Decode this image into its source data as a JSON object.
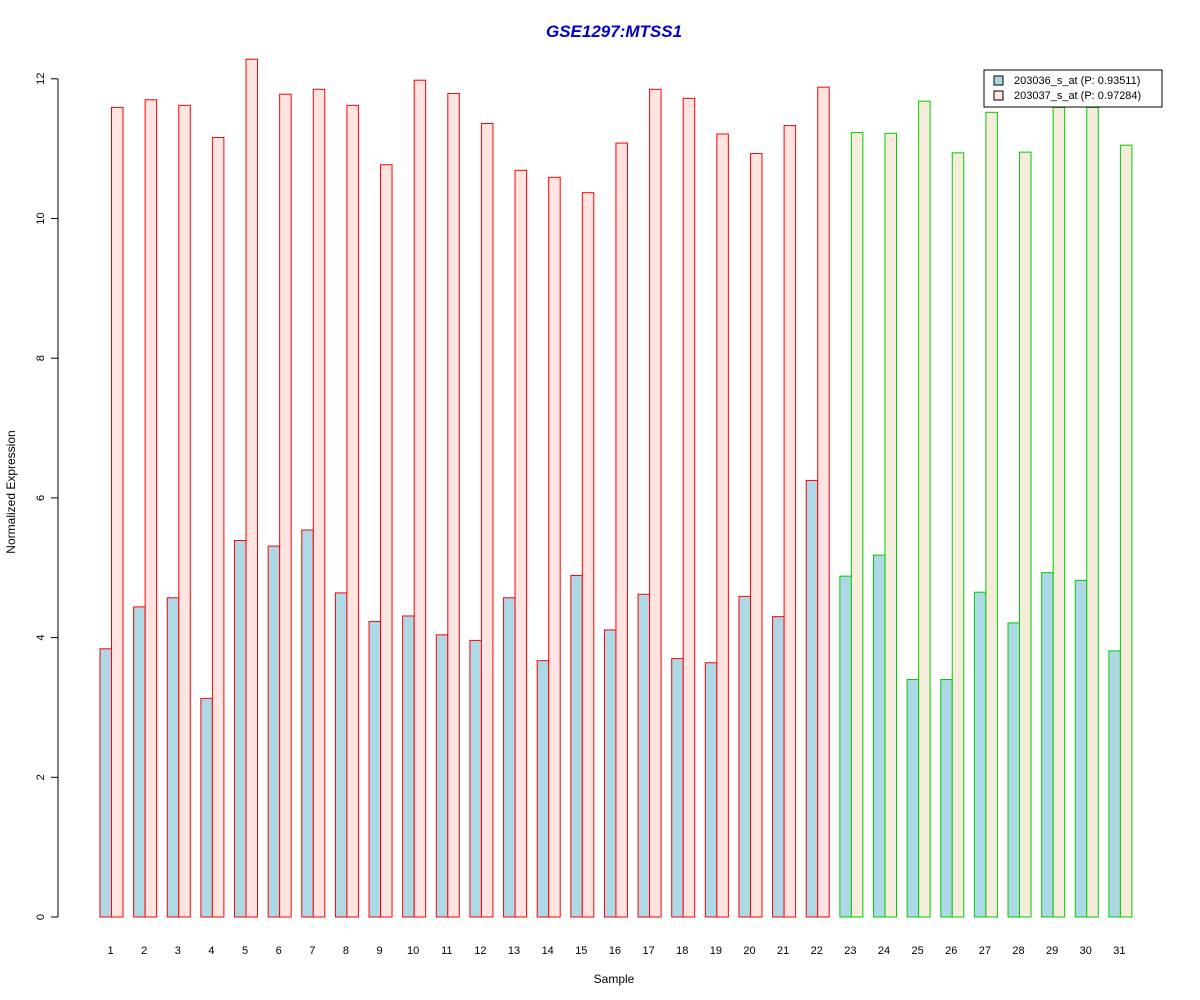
{
  "chart_data": {
    "type": "bar",
    "title": "GSE1297:MTSS1",
    "xlabel": "Sample",
    "ylabel": "Normalized Expression",
    "ylim": [
      0,
      12.3
    ],
    "yticks": [
      "0",
      "2",
      "4",
      "6",
      "8",
      "10",
      "12"
    ],
    "categories": [
      "1",
      "2",
      "3",
      "4",
      "5",
      "6",
      "7",
      "8",
      "9",
      "10",
      "11",
      "12",
      "13",
      "14",
      "15",
      "16",
      "17",
      "18",
      "19",
      "20",
      "21",
      "22",
      "23",
      "24",
      "25",
      "26",
      "27",
      "28",
      "29",
      "30",
      "31"
    ],
    "series": [
      {
        "name": "203036_s_at (P: 0.93511)",
        "values": [
          3.84,
          4.44,
          4.57,
          3.13,
          5.39,
          5.31,
          5.54,
          4.64,
          4.23,
          4.31,
          4.04,
          3.96,
          4.57,
          3.67,
          4.89,
          4.11,
          4.62,
          3.7,
          3.64,
          4.59,
          4.3,
          6.25,
          4.88,
          5.18,
          3.4,
          3.4,
          4.65,
          4.21,
          4.93,
          4.82,
          3.81
        ]
      },
      {
        "name": "203037_s_at (P: 0.97284)",
        "values": [
          11.59,
          11.7,
          11.62,
          11.16,
          12.28,
          11.78,
          11.85,
          11.62,
          10.77,
          11.98,
          11.79,
          11.36,
          10.69,
          10.59,
          10.37,
          11.08,
          11.85,
          11.72,
          11.21,
          10.93,
          11.33,
          11.88,
          11.23,
          11.22,
          11.68,
          10.94,
          11.52,
          10.95,
          11.59,
          11.59,
          11.05
        ]
      }
    ],
    "group_split_index": 22,
    "colors": {
      "title": "#0000cc",
      "series1_fill": "#add8e6",
      "series2_fill": "#ffe4e1",
      "series2_fill_group2": "#f5ecdc",
      "group1_border": "#ff0000",
      "group2_border": "#00cc00",
      "axis": "#000000"
    },
    "legend_position": "top-right"
  }
}
